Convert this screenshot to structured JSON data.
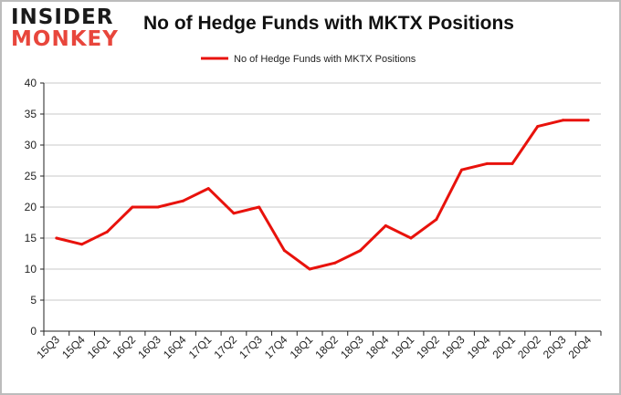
{
  "brand": {
    "line1": "INSIDER",
    "line2": "MONKEY"
  },
  "colors": {
    "series": "#e8120c",
    "grid": "#c8c8c8",
    "axis": "#222222",
    "brand_accent": "#e8463c"
  },
  "chart_data": {
    "type": "line",
    "title": "No of Hedge Funds with MKTX Positions",
    "xlabel": "",
    "ylabel": "",
    "ylim": [
      0,
      40
    ],
    "yticks": [
      0,
      5,
      10,
      15,
      20,
      25,
      30,
      35,
      40
    ],
    "grid": true,
    "legend_position": "top-center",
    "categories": [
      "15Q3",
      "15Q4",
      "16Q1",
      "16Q2",
      "16Q3",
      "16Q4",
      "17Q1",
      "17Q2",
      "17Q3",
      "17Q4",
      "18Q1",
      "18Q2",
      "18Q3",
      "18Q4",
      "19Q1",
      "19Q2",
      "19Q3",
      "19Q4",
      "20Q1",
      "20Q2",
      "20Q3",
      "20Q4"
    ],
    "series": [
      {
        "name": "No of Hedge Funds with MKTX Positions",
        "values": [
          15,
          14,
          16,
          20,
          20,
          21,
          23,
          19,
          20,
          13,
          10,
          11,
          13,
          17,
          15,
          18,
          26,
          27,
          27,
          33,
          34,
          34
        ]
      }
    ]
  }
}
